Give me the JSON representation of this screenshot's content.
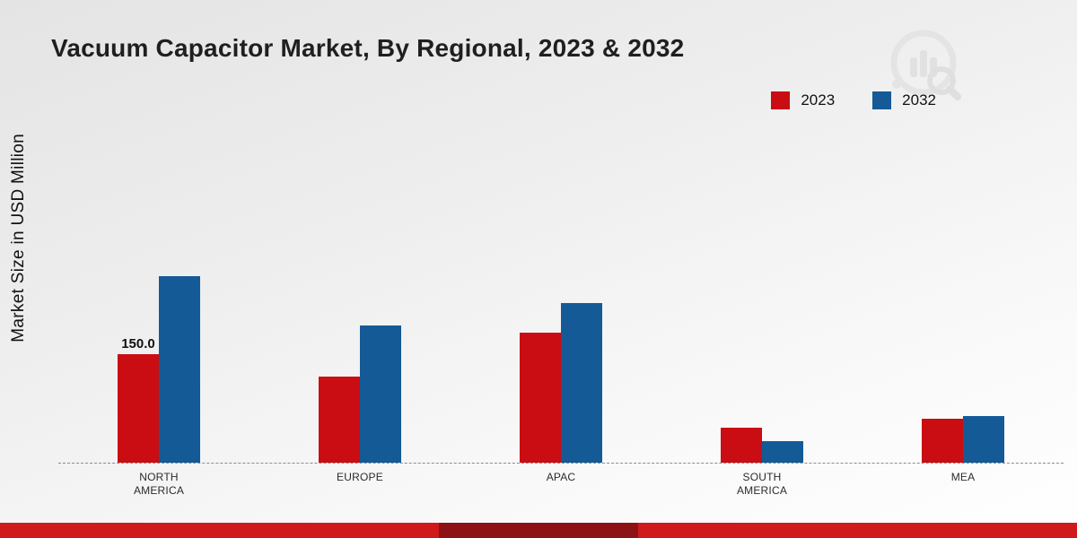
{
  "title": "Vacuum Capacitor Market, By Regional, 2023 & 2032",
  "icons": {
    "watermark": "mrfr-chart-magnifier-logo"
  },
  "chart_data": {
    "type": "bar",
    "title": "Vacuum Capacitor Market, By Regional, 2023 & 2032",
    "xlabel": "",
    "ylabel": "Market Size in USD Million",
    "categories": [
      "NORTH AMERICA",
      "EUROPE",
      "APAC",
      "SOUTH AMERICA",
      "MEA"
    ],
    "series": [
      {
        "name": "2023",
        "color": "#c90d12",
        "values": [
          150.0,
          119,
          180,
          48,
          61
        ],
        "labels": [
          "150.0",
          "",
          "",
          "",
          ""
        ]
      },
      {
        "name": "2032",
        "color": "#145a96",
        "values": [
          258,
          190,
          221,
          30,
          65
        ],
        "labels": [
          "",
          "",
          "",
          "",
          ""
        ]
      }
    ],
    "ylim": [
      0,
      280
    ],
    "grid": false,
    "legend_position": "top-right",
    "baseline_style": "dashed"
  },
  "footer": {
    "brand_bar_color": "#d0191c",
    "logo_block_color": "#8d1216"
  }
}
